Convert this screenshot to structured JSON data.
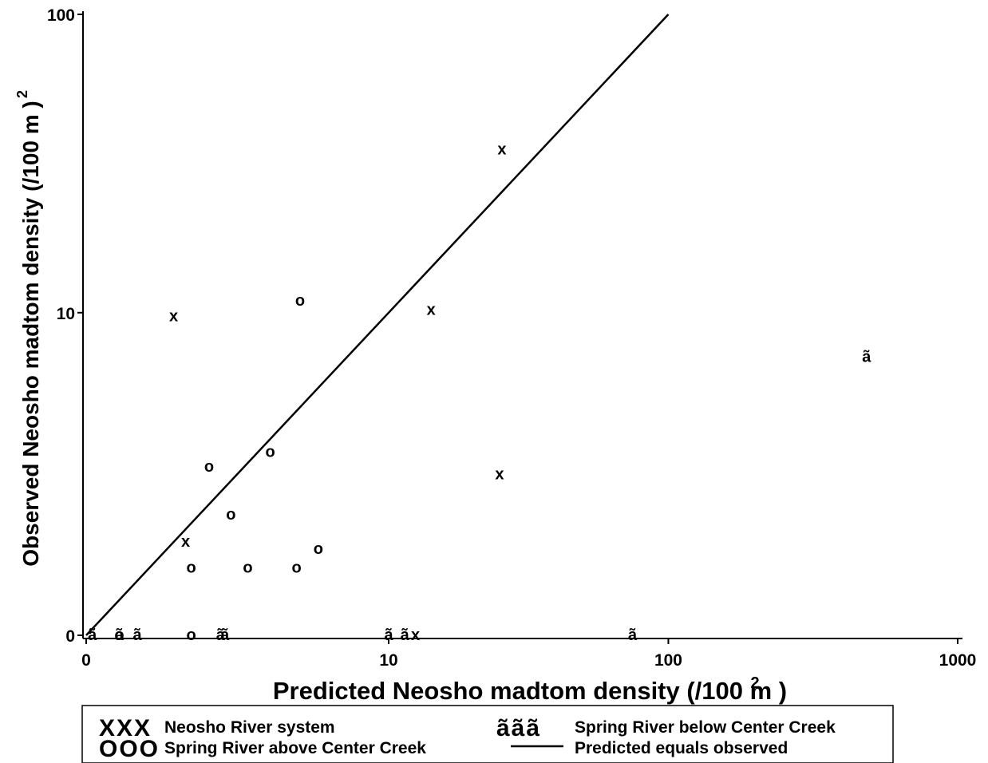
{
  "chart_data": {
    "type": "scatter",
    "xlabel": "Predicted Neosho madtom density (/100 m )",
    "xlabel_sup": "2",
    "ylabel": "Observed Neosho madtom density  (/100 m )",
    "ylabel_sup": "2",
    "x_scale": "log1p",
    "y_scale": "log1p",
    "xlim": [
      0,
      1000
    ],
    "ylim": [
      0,
      100
    ],
    "x_ticks": [
      {
        "value": 0,
        "label": "0"
      },
      {
        "value": 10,
        "label": "10"
      },
      {
        "value": 100,
        "label": "100"
      },
      {
        "value": 1000,
        "label": "1000"
      }
    ],
    "y_ticks": [
      {
        "value": 0,
        "label": "0"
      },
      {
        "value": 10,
        "label": "10"
      },
      {
        "value": 100,
        "label": "100"
      }
    ],
    "grid": false,
    "legend_position": "bottom",
    "series": [
      {
        "name": "Neosho River system",
        "symbol": "x",
        "legend_symbol": "XXX",
        "points": [
          {
            "x": 1.0,
            "y": 9.7
          },
          {
            "x": 1.2,
            "y": 1.0
          },
          {
            "x": 12.6,
            "y": 0
          },
          {
            "x": 14.4,
            "y": 10.2
          },
          {
            "x": 26.0,
            "y": 36.0
          },
          {
            "x": 25.5,
            "y": 2.3
          }
        ]
      },
      {
        "name": "Spring River above Center Creek",
        "symbol": "o",
        "legend_symbol": "OOO",
        "points": [
          {
            "x": 0.3,
            "y": 0
          },
          {
            "x": 1.3,
            "y": 0
          },
          {
            "x": 1.3,
            "y": 0.65
          },
          {
            "x": 1.65,
            "y": 2.5
          },
          {
            "x": 2.15,
            "y": 1.45
          },
          {
            "x": 2.6,
            "y": 0.65
          },
          {
            "x": 3.3,
            "y": 2.9
          },
          {
            "x": 4.3,
            "y": 0.65
          },
          {
            "x": 4.45,
            "y": 11.0
          },
          {
            "x": 5.3,
            "y": 0.9
          }
        ]
      },
      {
        "name": "Spring River below Center Creek",
        "symbol": "ã",
        "legend_symbol": "ããã",
        "points": [
          {
            "x": 0.05,
            "y": 0
          },
          {
            "x": 0.3,
            "y": 0
          },
          {
            "x": 0.5,
            "y": 0
          },
          {
            "x": 1.9,
            "y": 0
          },
          {
            "x": 2.0,
            "y": 0
          },
          {
            "x": 10.0,
            "y": 0
          },
          {
            "x": 11.5,
            "y": 0
          },
          {
            "x": 75.0,
            "y": 0
          },
          {
            "x": 485.0,
            "y": 6.9
          }
        ]
      },
      {
        "name": "Predicted equals observed",
        "symbol": "line",
        "points": [
          {
            "x": 0,
            "y": 0
          },
          {
            "x": 100,
            "y": 100
          }
        ]
      }
    ]
  }
}
